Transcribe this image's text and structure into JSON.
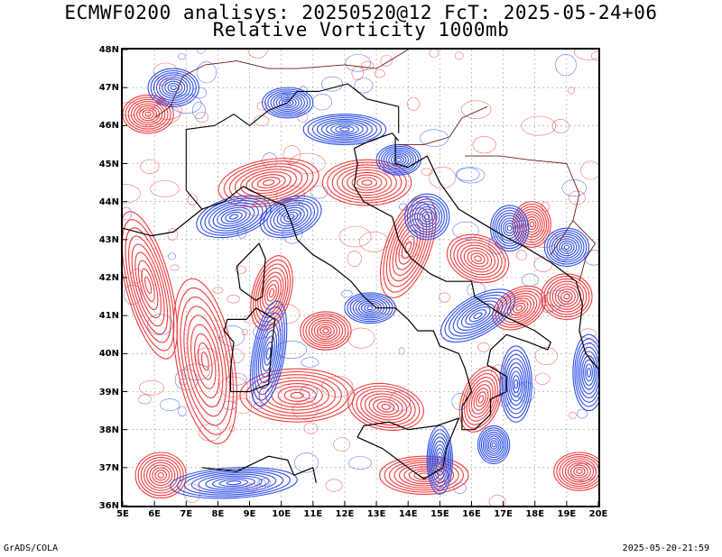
{
  "title_line1": "ECMWF0200 analisys: 20250520@12 FcT: 2025-05-24+06",
  "title_line2": "Relative Vorticity 1000mb",
  "footer_left": "GrADS/COLA",
  "footer_right": "2025-05-20-21:59",
  "colors": {
    "positive_contour": "#f23b3b",
    "negative_contour": "#2e4fe6",
    "coastline": "#000000",
    "borders": "#6b1a1a",
    "grid": "#9a9a9a"
  },
  "map": {
    "projection": "latlon",
    "lon_range": [
      5,
      20
    ],
    "lat_range": [
      36,
      48
    ],
    "grid_lines": "dashed, every 1 degree",
    "lon_ticks": [
      "5E",
      "6E",
      "7E",
      "8E",
      "9E",
      "10E",
      "11E",
      "12E",
      "13E",
      "14E",
      "15E",
      "16E",
      "17E",
      "18E",
      "19E",
      "20E"
    ],
    "lat_ticks": [
      "36N",
      "37N",
      "38N",
      "39N",
      "40N",
      "41N",
      "42N",
      "43N",
      "44N",
      "45N",
      "46N",
      "47N",
      "48N"
    ],
    "field": "relative vorticity 1000mb",
    "positive_regions": [
      {
        "lon": 5.8,
        "lat": 41.8,
        "rx": 0.7,
        "ry": 2.0,
        "rot": -15
      },
      {
        "lon": 7.6,
        "lat": 39.8,
        "rx": 0.9,
        "ry": 2.2,
        "rot": -10
      },
      {
        "lon": 6.2,
        "lat": 36.8,
        "rx": 0.8,
        "ry": 0.6,
        "rot": 0
      },
      {
        "lon": 10.5,
        "lat": 38.9,
        "rx": 1.8,
        "ry": 0.7,
        "rot": 0
      },
      {
        "lon": 13.3,
        "lat": 38.6,
        "rx": 1.2,
        "ry": 0.6,
        "rot": 10
      },
      {
        "lon": 9.6,
        "lat": 44.5,
        "rx": 1.6,
        "ry": 0.6,
        "rot": -10
      },
      {
        "lon": 12.7,
        "lat": 44.5,
        "rx": 1.4,
        "ry": 0.6,
        "rot": 0
      },
      {
        "lon": 14.0,
        "lat": 42.8,
        "rx": 0.7,
        "ry": 1.4,
        "rot": 20
      },
      {
        "lon": 16.2,
        "lat": 42.5,
        "rx": 1.0,
        "ry": 0.6,
        "rot": 20
      },
      {
        "lon": 17.5,
        "lat": 41.2,
        "rx": 0.9,
        "ry": 0.5,
        "rot": -30
      },
      {
        "lon": 19.0,
        "lat": 41.5,
        "rx": 0.8,
        "ry": 0.6,
        "rot": 0
      },
      {
        "lon": 16.3,
        "lat": 38.8,
        "rx": 0.6,
        "ry": 0.9,
        "rot": 20
      },
      {
        "lon": 14.5,
        "lat": 36.8,
        "rx": 1.4,
        "ry": 0.5,
        "rot": 0
      },
      {
        "lon": 19.4,
        "lat": 36.9,
        "rx": 0.8,
        "ry": 0.5,
        "rot": 0
      },
      {
        "lon": 9.7,
        "lat": 41.6,
        "rx": 0.6,
        "ry": 1.0,
        "rot": 15
      },
      {
        "lon": 5.8,
        "lat": 46.3,
        "rx": 0.8,
        "ry": 0.5,
        "rot": 0
      },
      {
        "lon": 11.4,
        "lat": 40.6,
        "rx": 0.8,
        "ry": 0.5,
        "rot": 0
      },
      {
        "lon": 17.9,
        "lat": 43.4,
        "rx": 0.6,
        "ry": 0.6,
        "rot": 0
      }
    ],
    "negative_regions": [
      {
        "lon": 8.5,
        "lat": 43.6,
        "rx": 1.2,
        "ry": 0.5,
        "rot": -15
      },
      {
        "lon": 10.3,
        "lat": 43.6,
        "rx": 1.0,
        "ry": 0.5,
        "rot": -20
      },
      {
        "lon": 12.0,
        "lat": 45.9,
        "rx": 1.3,
        "ry": 0.4,
        "rot": 0
      },
      {
        "lon": 13.7,
        "lat": 45.1,
        "rx": 0.7,
        "ry": 0.4,
        "rot": 0
      },
      {
        "lon": 14.6,
        "lat": 43.6,
        "rx": 0.7,
        "ry": 0.6,
        "rot": 0
      },
      {
        "lon": 9.6,
        "lat": 40.0,
        "rx": 0.5,
        "ry": 1.4,
        "rot": 10
      },
      {
        "lon": 16.2,
        "lat": 41.0,
        "rx": 1.3,
        "ry": 0.5,
        "rot": -30
      },
      {
        "lon": 17.4,
        "lat": 39.2,
        "rx": 0.5,
        "ry": 1.0,
        "rot": 0
      },
      {
        "lon": 15.0,
        "lat": 37.2,
        "rx": 0.4,
        "ry": 0.9,
        "rot": 0
      },
      {
        "lon": 8.5,
        "lat": 36.6,
        "rx": 2.0,
        "ry": 0.4,
        "rot": -3
      },
      {
        "lon": 17.2,
        "lat": 43.3,
        "rx": 0.6,
        "ry": 0.6,
        "rot": 0
      },
      {
        "lon": 19.0,
        "lat": 42.8,
        "rx": 0.7,
        "ry": 0.5,
        "rot": 0
      },
      {
        "lon": 19.7,
        "lat": 39.5,
        "rx": 0.5,
        "ry": 1.0,
        "rot": 0
      },
      {
        "lon": 6.6,
        "lat": 47.0,
        "rx": 0.8,
        "ry": 0.5,
        "rot": 0
      },
      {
        "lon": 12.8,
        "lat": 41.2,
        "rx": 0.8,
        "ry": 0.4,
        "rot": 0
      },
      {
        "lon": 10.2,
        "lat": 46.6,
        "rx": 0.8,
        "ry": 0.4,
        "rot": 0
      },
      {
        "lon": 16.7,
        "lat": 37.6,
        "rx": 0.5,
        "ry": 0.5,
        "rot": 0
      }
    ],
    "coastline_italy": [
      [
        7.5,
        43.8
      ],
      [
        8.2,
        44.0
      ],
      [
        8.8,
        44.4
      ],
      [
        9.5,
        44.1
      ],
      [
        10.1,
        43.9
      ],
      [
        10.3,
        43.5
      ],
      [
        10.5,
        43.0
      ],
      [
        11.0,
        42.6
      ],
      [
        11.6,
        42.3
      ],
      [
        12.2,
        41.9
      ],
      [
        12.6,
        41.5
      ],
      [
        13.0,
        41.2
      ],
      [
        13.6,
        41.2
      ],
      [
        14.0,
        40.9
      ],
      [
        14.3,
        40.6
      ],
      [
        14.8,
        40.6
      ],
      [
        15.0,
        40.2
      ],
      [
        15.6,
        40.0
      ],
      [
        15.8,
        39.6
      ],
      [
        16.0,
        39.0
      ],
      [
        15.7,
        38.6
      ],
      [
        15.7,
        38.0
      ],
      [
        16.1,
        38.0
      ],
      [
        16.6,
        38.4
      ],
      [
        16.6,
        38.8
      ],
      [
        17.1,
        39.0
      ],
      [
        17.1,
        39.4
      ],
      [
        16.5,
        39.7
      ],
      [
        16.6,
        40.1
      ],
      [
        17.1,
        40.5
      ],
      [
        17.8,
        40.3
      ],
      [
        18.4,
        40.1
      ],
      [
        18.5,
        40.3
      ],
      [
        18.0,
        40.6
      ],
      [
        17.0,
        41.0
      ],
      [
        16.1,
        41.5
      ],
      [
        16.0,
        41.9
      ],
      [
        15.2,
        41.9
      ],
      [
        14.7,
        42.1
      ],
      [
        14.1,
        42.5
      ],
      [
        13.7,
        43.0
      ],
      [
        13.5,
        43.6
      ],
      [
        12.6,
        44.0
      ],
      [
        12.3,
        44.4
      ],
      [
        12.4,
        45.0
      ],
      [
        12.3,
        45.4
      ],
      [
        12.8,
        45.6
      ],
      [
        13.5,
        45.8
      ],
      [
        13.7,
        45.6
      ]
    ],
    "coastline_sicily": [
      [
        12.4,
        37.8
      ],
      [
        12.6,
        38.1
      ],
      [
        13.4,
        38.2
      ],
      [
        14.0,
        38.0
      ],
      [
        14.9,
        38.1
      ],
      [
        15.6,
        38.3
      ],
      [
        15.2,
        37.5
      ],
      [
        15.1,
        37.0
      ],
      [
        14.5,
        36.7
      ],
      [
        14.0,
        37.0
      ],
      [
        13.2,
        37.5
      ],
      [
        12.4,
        37.8
      ]
    ],
    "coastline_sardinia": [
      [
        8.4,
        39.0
      ],
      [
        8.4,
        39.6
      ],
      [
        8.5,
        40.3
      ],
      [
        8.2,
        40.6
      ],
      [
        8.3,
        40.9
      ],
      [
        8.9,
        40.9
      ],
      [
        9.2,
        41.2
      ],
      [
        9.8,
        40.9
      ],
      [
        9.7,
        40.2
      ],
      [
        9.6,
        39.2
      ],
      [
        9.0,
        39.0
      ],
      [
        8.4,
        39.0
      ]
    ],
    "coastline_corsica": [
      [
        8.7,
        41.7
      ],
      [
        8.6,
        42.3
      ],
      [
        9.3,
        42.9
      ],
      [
        9.5,
        42.5
      ],
      [
        9.4,
        41.5
      ],
      [
        9.2,
        41.4
      ],
      [
        8.7,
        41.7
      ]
    ],
    "coastline_balkans": [
      [
        13.6,
        45.7
      ],
      [
        13.6,
        45.0
      ],
      [
        14.0,
        44.9
      ],
      [
        14.6,
        45.2
      ],
      [
        15.0,
        44.5
      ],
      [
        15.6,
        43.8
      ],
      [
        16.2,
        43.5
      ],
      [
        17.0,
        43.1
      ],
      [
        17.7,
        42.8
      ],
      [
        18.5,
        42.4
      ],
      [
        19.3,
        41.9
      ],
      [
        19.5,
        41.3
      ],
      [
        19.4,
        40.6
      ],
      [
        19.6,
        40.0
      ],
      [
        20.0,
        39.6
      ]
    ],
    "coastline_france": [
      [
        5.0,
        43.3
      ],
      [
        5.9,
        43.1
      ],
      [
        6.6,
        43.2
      ],
      [
        7.2,
        43.6
      ],
      [
        7.5,
        43.8
      ]
    ],
    "coastline_tunisia": [
      [
        7.5,
        37.0
      ],
      [
        8.6,
        36.9
      ],
      [
        9.6,
        37.3
      ],
      [
        10.2,
        37.2
      ],
      [
        10.4,
        36.8
      ],
      [
        11.0,
        37.0
      ],
      [
        11.1,
        36.6
      ]
    ],
    "border_alps": [
      [
        7.5,
        43.8
      ],
      [
        7.0,
        44.3
      ],
      [
        7.0,
        45.0
      ],
      [
        7.0,
        45.9
      ],
      [
        7.9,
        46.0
      ],
      [
        8.5,
        46.3
      ],
      [
        9.0,
        46.0
      ],
      [
        9.6,
        46.4
      ],
      [
        10.2,
        46.6
      ],
      [
        10.5,
        46.9
      ],
      [
        11.2,
        46.9
      ],
      [
        12.1,
        47.1
      ],
      [
        12.7,
        46.7
      ],
      [
        13.7,
        46.5
      ],
      [
        13.7,
        45.8
      ]
    ],
    "border_swiss_north": [
      [
        6.0,
        46.2
      ],
      [
        6.5,
        46.5
      ],
      [
        6.9,
        47.3
      ],
      [
        7.6,
        47.6
      ],
      [
        8.6,
        47.7
      ],
      [
        9.6,
        47.5
      ]
    ],
    "border_austria_north": [
      [
        9.6,
        47.5
      ],
      [
        10.5,
        47.5
      ],
      [
        12.0,
        47.6
      ],
      [
        13.0,
        47.5
      ],
      [
        14.0,
        48.0
      ]
    ],
    "border_slovenia_croatia": [
      [
        13.7,
        45.5
      ],
      [
        14.5,
        45.5
      ],
      [
        15.3,
        45.7
      ],
      [
        15.7,
        46.2
      ],
      [
        16.5,
        46.5
      ]
    ],
    "border_bosnia": [
      [
        15.8,
        45.2
      ],
      [
        16.9,
        45.2
      ],
      [
        17.8,
        45.1
      ],
      [
        19.0,
        45.0
      ],
      [
        19.4,
        44.2
      ],
      [
        19.2,
        43.5
      ],
      [
        18.5,
        42.6
      ]
    ],
    "border_montenegro_albania": [
      [
        19.2,
        43.5
      ],
      [
        19.9,
        42.9
      ],
      [
        19.6,
        42.5
      ],
      [
        19.4,
        41.9
      ]
    ]
  }
}
